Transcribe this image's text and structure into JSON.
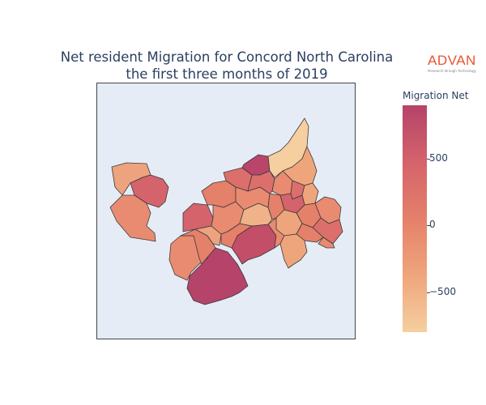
{
  "title": {
    "line1": "Net resident Migration for Concord North Carolina",
    "line2": "the first three months of 2019"
  },
  "logo": {
    "brand": "ADVAN",
    "tagline": "Research through Technology"
  },
  "colorbar": {
    "title": "Migration Net",
    "colors": [
      "#f5cf9f",
      "#efa57c",
      "#e5806a",
      "#d4636b",
      "#b6436a"
    ],
    "range": [
      -800,
      900
    ],
    "ticks": [
      {
        "value": 500,
        "label": "500"
      },
      {
        "value": 0,
        "label": "0"
      },
      {
        "value": -500,
        "label": "−500"
      }
    ]
  },
  "map": {
    "type": "choropleth",
    "regions": [
      {
        "name": "west-upper",
        "value": -150
      },
      {
        "name": "west-middle",
        "value": 350
      },
      {
        "name": "west-lower",
        "value": 0
      },
      {
        "name": "south-large",
        "value": 850
      },
      {
        "name": "southwest-strip",
        "value": 100
      },
      {
        "name": "east-large",
        "value": 650
      },
      {
        "name": "north-tip",
        "value": -800
      },
      {
        "name": "center-pale",
        "value": -550
      },
      {
        "name": "north-red",
        "value": 750
      },
      {
        "name": "center-upper",
        "value": 300
      },
      {
        "name": "east-small",
        "value": 100
      }
    ]
  }
}
